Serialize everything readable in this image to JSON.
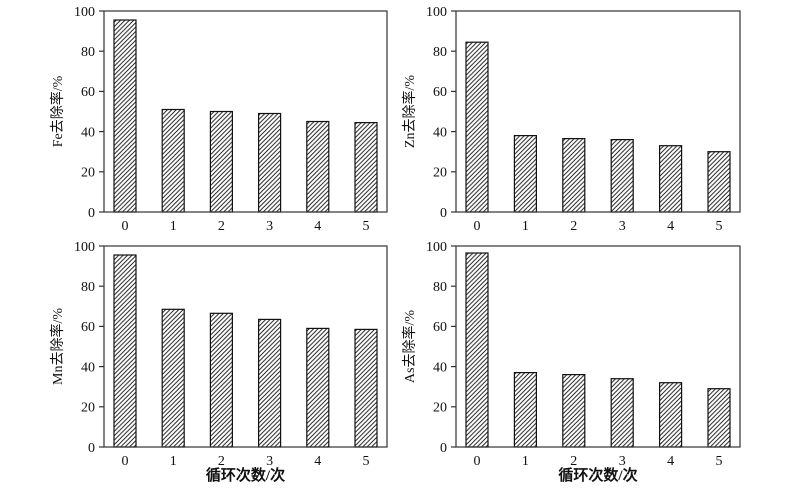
{
  "figure": {
    "background": "#ffffff",
    "text_color": "#111111",
    "axis_color": "#333333",
    "bar_fill": "#ffffff",
    "bar_stroke": "#111111",
    "hatch_color": "#111111",
    "hatch_style": "forward-diagonal"
  },
  "chart_data": [
    {
      "type": "bar",
      "name": "fe-removal",
      "title": "",
      "ylabel": "Fe去除率/%",
      "xlabel": "",
      "categories": [
        "0",
        "1",
        "2",
        "3",
        "4",
        "5"
      ],
      "values": [
        95.5,
        51,
        50,
        49,
        45,
        44.5
      ],
      "ylim": [
        0,
        100
      ],
      "yticks": [
        0,
        20,
        40,
        60,
        80,
        100
      ],
      "grid": false,
      "legend": "none"
    },
    {
      "type": "bar",
      "name": "zn-removal",
      "title": "",
      "ylabel": "Zn去除率/%",
      "xlabel": "",
      "categories": [
        "0",
        "1",
        "2",
        "3",
        "4",
        "5"
      ],
      "values": [
        84.5,
        38,
        36.5,
        36,
        33,
        30
      ],
      "ylim": [
        0,
        100
      ],
      "yticks": [
        0,
        20,
        40,
        60,
        80,
        100
      ],
      "grid": false,
      "legend": "none"
    },
    {
      "type": "bar",
      "name": "mn-removal",
      "title": "",
      "ylabel": "Mn去除率/%",
      "xlabel": "循环次数/次",
      "categories": [
        "0",
        "1",
        "2",
        "3",
        "4",
        "5"
      ],
      "values": [
        95.5,
        68.5,
        66.5,
        63.5,
        59,
        58.5
      ],
      "ylim": [
        0,
        100
      ],
      "yticks": [
        0,
        20,
        40,
        60,
        80,
        100
      ],
      "grid": false,
      "legend": "none"
    },
    {
      "type": "bar",
      "name": "as-removal",
      "title": "",
      "ylabel": "As去除率/%",
      "xlabel": "循环次数/次",
      "categories": [
        "0",
        "1",
        "2",
        "3",
        "4",
        "5"
      ],
      "values": [
        96.5,
        37,
        36,
        34,
        32,
        29
      ],
      "ylim": [
        0,
        100
      ],
      "yticks": [
        0,
        20,
        40,
        60,
        80,
        100
      ],
      "grid": false,
      "legend": "none"
    }
  ]
}
